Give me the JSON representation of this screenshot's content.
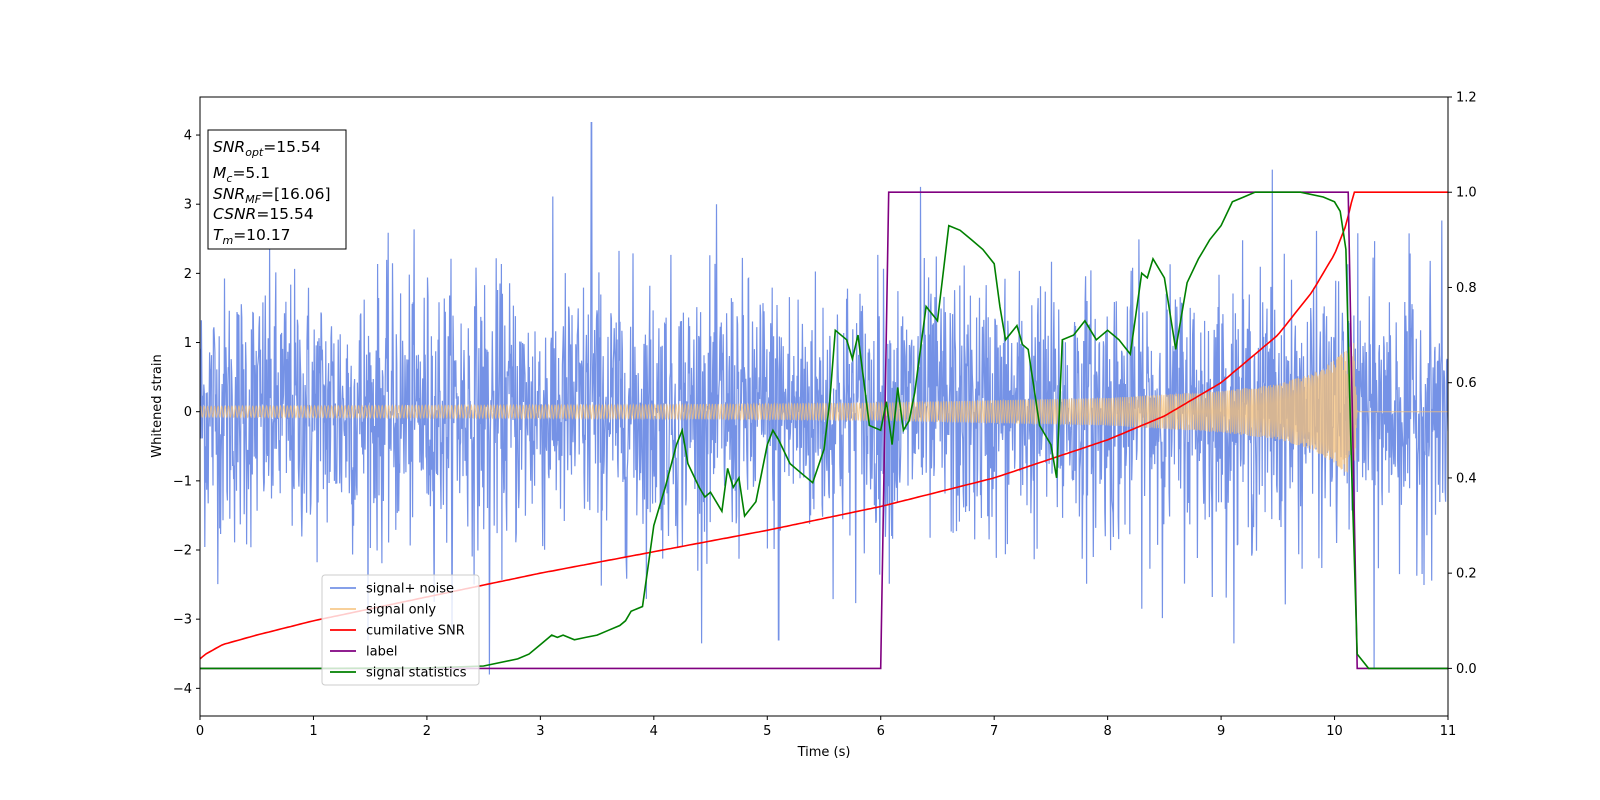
{
  "chart_data": {
    "type": "line",
    "xlabel": "Time (s)",
    "ylabel": "Whitened strain",
    "xlim": [
      0,
      11
    ],
    "ylim_left": [
      -4.4,
      4.55
    ],
    "ylim_right": [
      -0.1,
      1.2
    ],
    "x_ticks": [
      "0",
      "1",
      "2",
      "3",
      "4",
      "5",
      "6",
      "7",
      "8",
      "9",
      "10",
      "11"
    ],
    "y_ticks_left": [
      "−4",
      "−3",
      "−2",
      "−1",
      "0",
      "1",
      "2",
      "3",
      "4"
    ],
    "y_ticks_right": [
      "0.0",
      "0.2",
      "0.4",
      "0.6",
      "0.8",
      "1.0",
      "1.2"
    ],
    "grid": false,
    "legend_position": "lower-left",
    "info_box": {
      "snr_opt": {
        "base": "SNR",
        "sub": "opt",
        "value": "=15.54"
      },
      "mc": {
        "base": "M",
        "sub": "c",
        "value": "=5.1"
      },
      "snr_mf": {
        "base": "SNR",
        "sub": "MF",
        "value": "=[16.06]"
      },
      "csnr": {
        "base": "CSNR",
        "sub": "",
        "value": "=15.54"
      },
      "tm": {
        "base": "T",
        "sub": "m",
        "value": "=10.17"
      }
    },
    "series": [
      {
        "name": "signal+ noise",
        "axis": "left",
        "color": "#7592e6",
        "description": "noisy whitened strain, roughly Gaussian with std ~1",
        "notable_peaks": [
          [
            3.45,
            4.18
          ],
          [
            9.45,
            3.5
          ],
          [
            6.35,
            3.25
          ],
          [
            2.55,
            -3.8
          ],
          [
            10.35,
            -3.7
          ],
          [
            5.1,
            -3.3
          ]
        ]
      },
      {
        "name": "signal only",
        "axis": "left",
        "color": "#f5c078",
        "envelope": {
          "x": [
            0,
            2,
            4,
            6,
            8,
            9,
            9.5,
            9.8,
            10.0,
            10.1,
            10.17,
            10.2,
            11
          ],
          "amp": [
            0.08,
            0.09,
            0.1,
            0.13,
            0.2,
            0.3,
            0.4,
            0.55,
            0.75,
            0.9,
            1.0,
            0.0,
            0.0
          ]
        }
      },
      {
        "name": "cumilative SNR",
        "axis": "right",
        "color": "#ff0000",
        "x": [
          0,
          0.05,
          0.2,
          0.5,
          1,
          2,
          3,
          4,
          5,
          6,
          7,
          8,
          8.5,
          9,
          9.5,
          9.8,
          10,
          10.1,
          10.17,
          11
        ],
        "y": [
          0.02,
          0.03,
          0.05,
          0.07,
          0.1,
          0.15,
          0.2,
          0.245,
          0.29,
          0.34,
          0.4,
          0.48,
          0.53,
          0.6,
          0.7,
          0.79,
          0.87,
          0.93,
          1.0,
          1.0
        ]
      },
      {
        "name": "label",
        "axis": "right",
        "color": "#800080",
        "x": [
          0,
          6.0,
          6.07,
          10.12,
          10.2,
          11
        ],
        "y": [
          0,
          0,
          1,
          1,
          0,
          0
        ]
      },
      {
        "name": "signal statistics",
        "axis": "right",
        "color": "#008000",
        "x": [
          0,
          1,
          2,
          2.5,
          2.8,
          2.9,
          3.0,
          3.1,
          3.15,
          3.2,
          3.3,
          3.4,
          3.5,
          3.6,
          3.7,
          3.75,
          3.8,
          3.9,
          4.0,
          4.1,
          4.2,
          4.25,
          4.3,
          4.4,
          4.45,
          4.5,
          4.6,
          4.65,
          4.7,
          4.75,
          4.8,
          4.9,
          5.0,
          5.05,
          5.1,
          5.2,
          5.3,
          5.4,
          5.5,
          5.55,
          5.6,
          5.7,
          5.75,
          5.8,
          5.9,
          6.0,
          6.05,
          6.1,
          6.15,
          6.2,
          6.25,
          6.3,
          6.4,
          6.5,
          6.6,
          6.7,
          6.8,
          6.9,
          7.0,
          7.05,
          7.1,
          7.2,
          7.25,
          7.3,
          7.4,
          7.5,
          7.55,
          7.6,
          7.7,
          7.8,
          7.9,
          8.0,
          8.1,
          8.2,
          8.3,
          8.35,
          8.4,
          8.5,
          8.6,
          8.7,
          8.8,
          8.85,
          8.9,
          9.0,
          9.1,
          9.2,
          9.3,
          9.5,
          9.7,
          9.9,
          10.0,
          10.05,
          10.1,
          10.15,
          10.2,
          10.3,
          11
        ],
        "y": [
          0,
          0,
          0.001,
          0.005,
          0.02,
          0.03,
          0.05,
          0.07,
          0.065,
          0.07,
          0.06,
          0.065,
          0.07,
          0.08,
          0.09,
          0.1,
          0.12,
          0.13,
          0.3,
          0.38,
          0.47,
          0.5,
          0.43,
          0.38,
          0.36,
          0.37,
          0.33,
          0.42,
          0.38,
          0.4,
          0.32,
          0.35,
          0.47,
          0.5,
          0.48,
          0.43,
          0.41,
          0.39,
          0.46,
          0.56,
          0.71,
          0.69,
          0.65,
          0.7,
          0.51,
          0.5,
          0.56,
          0.47,
          0.59,
          0.5,
          0.52,
          0.58,
          0.76,
          0.73,
          0.93,
          0.92,
          0.9,
          0.88,
          0.85,
          0.76,
          0.69,
          0.72,
          0.68,
          0.67,
          0.51,
          0.47,
          0.4,
          0.69,
          0.7,
          0.73,
          0.69,
          0.71,
          0.69,
          0.66,
          0.83,
          0.82,
          0.86,
          0.82,
          0.67,
          0.81,
          0.86,
          0.88,
          0.9,
          0.93,
          0.98,
          0.99,
          1.0,
          1.0,
          1.0,
          0.99,
          0.98,
          0.96,
          0.88,
          0.42,
          0.03,
          0.0,
          0.0
        ]
      }
    ]
  }
}
